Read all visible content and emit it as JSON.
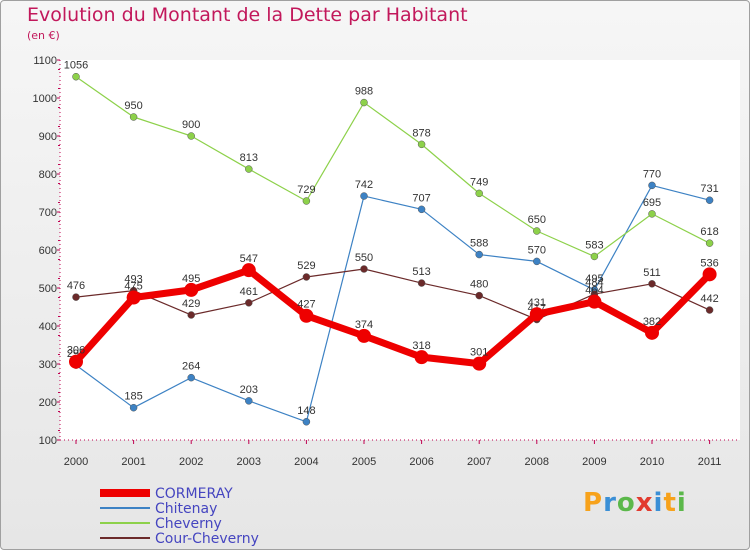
{
  "title": "Evolution du Montant de la Dette par Habitant",
  "subtitle": "(en €)",
  "logo": {
    "text": "Proxiti",
    "letters": [
      {
        "ch": "P",
        "color": "#f7a21b"
      },
      {
        "ch": "r",
        "color": "#3a8fd6"
      },
      {
        "ch": "o",
        "color": "#5bb84a"
      },
      {
        "ch": "x",
        "color": "#e23b2f"
      },
      {
        "ch": "i",
        "color": "#3a8fd6"
      },
      {
        "ch": "t",
        "color": "#f7a21b"
      },
      {
        "ch": "i",
        "color": "#5bb84a"
      }
    ]
  },
  "chart_data": {
    "type": "line",
    "title": "Evolution du Montant de la Dette par Habitant",
    "subtitle": "(en €)",
    "x": [
      "2000",
      "2001",
      "2002",
      "2003",
      "2004",
      "2005",
      "2006",
      "2007",
      "2008",
      "2009",
      "2010",
      "2011"
    ],
    "ylim": [
      100,
      1100
    ],
    "yticks": [
      100,
      200,
      300,
      400,
      500,
      600,
      700,
      800,
      900,
      1000,
      1100
    ],
    "grid": false,
    "legend_position": "bottom-left",
    "series": [
      {
        "name": "Chitenay",
        "color": "#3d82c4",
        "width": 1.2,
        "marker": 3.5,
        "values": [
          297,
          185,
          264,
          203,
          148,
          742,
          707,
          588,
          570,
          495,
          770,
          731
        ],
        "labels": [
          "297",
          "185",
          "264",
          "203",
          "148",
          "742",
          "707",
          "588",
          "570",
          "495",
          "770",
          "731"
        ]
      },
      {
        "name": "Cheverny",
        "color": "#8dd14a",
        "width": 1.2,
        "marker": 3.5,
        "values": [
          1056,
          950,
          900,
          813,
          729,
          988,
          878,
          749,
          650,
          583,
          695,
          618
        ],
        "labels": [
          "1056",
          "950",
          "900",
          "813",
          "729",
          "988",
          "878",
          "749",
          "650",
          "583",
          "695",
          "618"
        ]
      },
      {
        "name": "Cour-Cheverny",
        "color": "#6b2a2a",
        "width": 1.2,
        "marker": 3.5,
        "values": [
          476,
          493,
          429,
          461,
          529,
          550,
          513,
          480,
          417,
          484,
          511,
          442
        ],
        "labels": [
          "476",
          "493",
          "429",
          "461",
          "529",
          "550",
          "513",
          "480",
          "417",
          "484",
          "511",
          "442"
        ]
      },
      {
        "name": "CORMERAY",
        "color": "#ee0000",
        "width": 7,
        "marker": 7,
        "values": [
          306,
          475,
          495,
          547,
          427,
          374,
          318,
          301,
          431,
          464,
          382,
          536
        ],
        "labels": [
          "306",
          "475",
          "495",
          "547",
          "427",
          "374",
          "318",
          "301",
          "431",
          "464",
          "382",
          "536"
        ]
      }
    ],
    "legend_order": [
      "CORMERAY",
      "Chitenay",
      "Cheverny",
      "Cour-Cheverny"
    ]
  }
}
